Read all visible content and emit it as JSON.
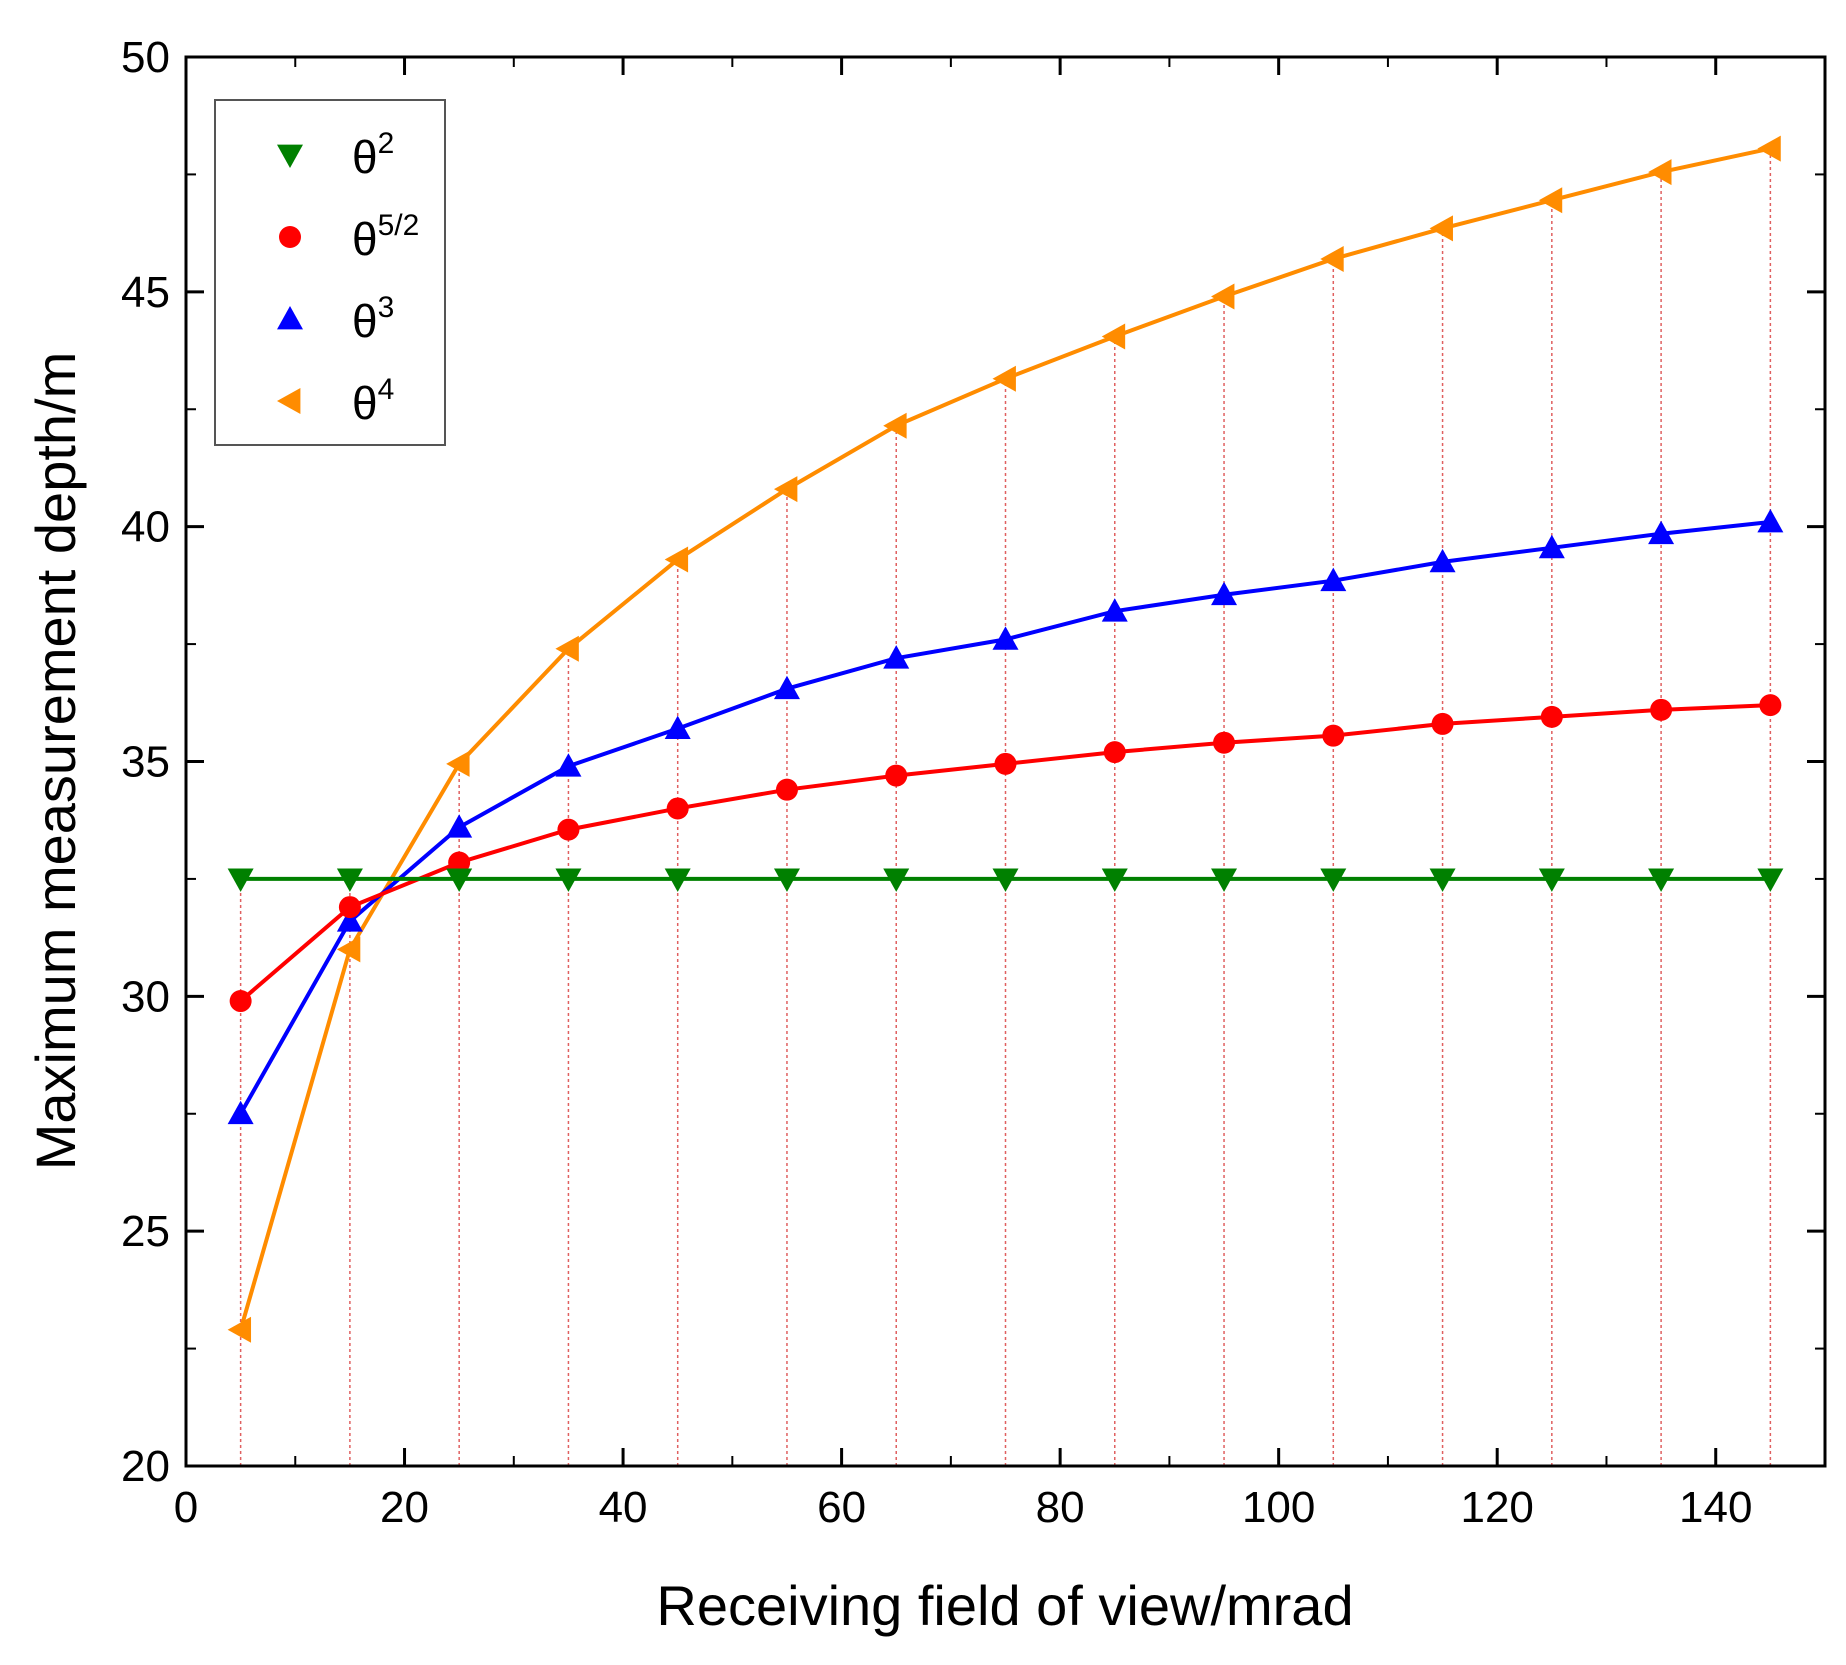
{
  "chart_data": {
    "type": "line",
    "title": "",
    "xlabel": "Receiving field of view/mrad",
    "ylabel": "Maximum measurement depth/m",
    "xlim": [
      0,
      150
    ],
    "ylim": [
      20,
      50
    ],
    "xticks": [
      0,
      20,
      40,
      60,
      80,
      100,
      120,
      140
    ],
    "yticks": [
      20,
      25,
      30,
      35,
      40,
      45,
      50
    ],
    "grid": false,
    "legend_position": "top-left",
    "x": [
      5,
      15,
      25,
      35,
      45,
      55,
      65,
      75,
      85,
      95,
      105,
      115,
      125,
      135,
      145
    ],
    "series": [
      {
        "name": "θ",
        "sup": "2",
        "color": "#008000",
        "marker": "triangle-down",
        "values": [
          32.5,
          32.5,
          32.5,
          32.5,
          32.5,
          32.5,
          32.5,
          32.5,
          32.5,
          32.5,
          32.5,
          32.5,
          32.5,
          32.5,
          32.5
        ]
      },
      {
        "name": "θ",
        "sup": "5/2",
        "color": "#ff0000",
        "marker": "circle",
        "values": [
          29.9,
          31.9,
          32.85,
          33.55,
          34.0,
          34.4,
          34.7,
          34.95,
          35.2,
          35.4,
          35.55,
          35.8,
          35.95,
          36.1,
          36.2
        ]
      },
      {
        "name": "θ",
        "sup": "3",
        "color": "#0000ff",
        "marker": "triangle-up",
        "values": [
          27.5,
          31.6,
          33.6,
          34.9,
          35.7,
          36.55,
          37.2,
          37.6,
          38.2,
          38.55,
          38.85,
          39.25,
          39.55,
          39.85,
          40.1
        ]
      },
      {
        "name": "θ",
        "sup": "4",
        "color": "#ff8c00",
        "marker": "triangle-left",
        "values": [
          22.9,
          31.0,
          34.95,
          37.4,
          39.3,
          40.8,
          42.15,
          43.15,
          44.05,
          44.9,
          45.7,
          46.35,
          46.95,
          47.55,
          48.05
        ]
      }
    ],
    "drop_lines_color": "#e06060"
  }
}
